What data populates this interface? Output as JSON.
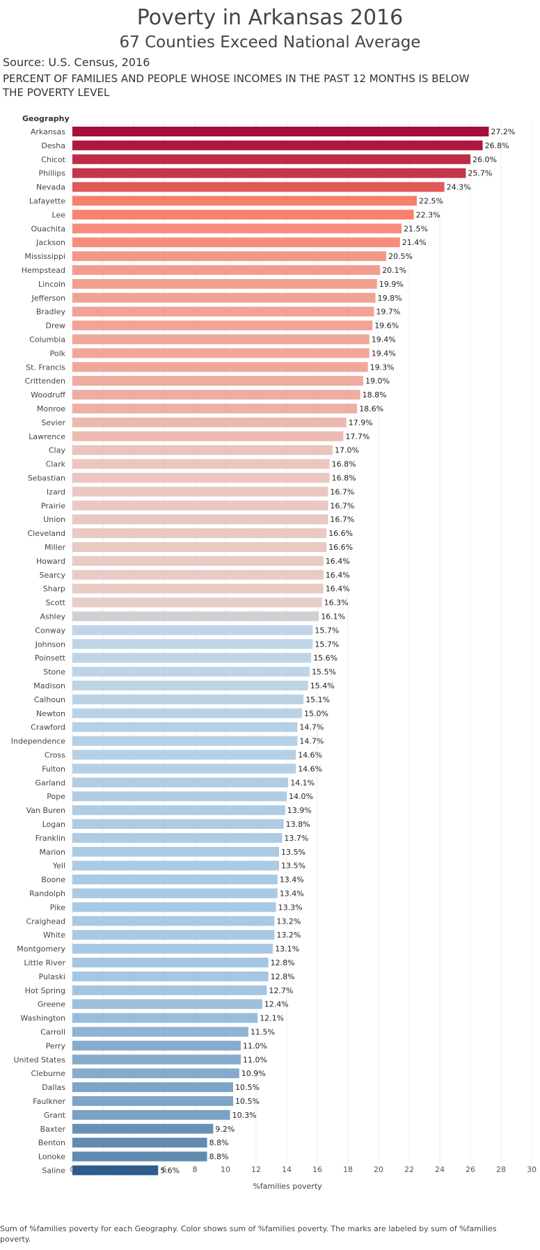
{
  "header": {
    "title": "Poverty in Arkansas 2016",
    "subtitle": "67 Counties Exceed National Average",
    "source": "Source: U.S. Census, 2016",
    "description": "PERCENT OF FAMILIES AND PEOPLE WHOSE INCOMES IN THE PAST 12 MONTHS IS BELOW THE POVERTY LEVEL"
  },
  "footnote": "Sum of %families poverty for each Geography.  Color shows sum of %families poverty.  The marks are labeled by sum of %families poverty.",
  "chart_data": {
    "type": "bar",
    "orientation": "horizontal",
    "row_header": "Geography",
    "xlabel": "%families poverty",
    "xlim": [
      0,
      30
    ],
    "xticks": [
      0,
      2,
      4,
      6,
      8,
      10,
      12,
      14,
      16,
      18,
      20,
      22,
      24,
      26,
      28,
      30
    ],
    "grid": true,
    "color_scale": {
      "low": "#2c5b8c",
      "mid": "#d4d4d4",
      "high": "#a50f3a"
    },
    "categories": [
      "Arkansas",
      "Desha",
      "Chicot",
      "Phillips",
      "Nevada",
      "Lafayette",
      "Lee",
      "Ouachita",
      "Jackson",
      "Mississippi",
      "Hempstead",
      "Lincoln",
      "Jefferson",
      "Bradley",
      "Drew",
      "Columbia",
      "Polk",
      "St. Francis",
      "Crittenden",
      "Woodruff",
      "Monroe",
      "Sevier",
      "Lawrence",
      "Clay",
      "Clark",
      "Sebastian",
      "Izard",
      "Prairie",
      "Union",
      "Cleveland",
      "Miller",
      "Howard",
      "Searcy",
      "Sharp",
      "Scott",
      "Ashley",
      "Conway",
      "Johnson",
      "Poinsett",
      "Stone",
      "Madison",
      "Calhoun",
      "Newton",
      "Crawford",
      "Independence",
      "Cross",
      "Fulton",
      "Garland",
      "Pope",
      "Van Buren",
      "Logan",
      "Franklin",
      "Marion",
      "Yell",
      "Boone",
      "Randolph",
      "Pike",
      "Craighead",
      "White",
      "Montgomery",
      "Little River",
      "Pulaski",
      "Hot Spring",
      "Greene",
      "Washington",
      "Carroll",
      "Perry",
      "United States",
      "Cleburne",
      "Dallas",
      "Faulkner",
      "Grant",
      "Baxter",
      "Benton",
      "Lonoke",
      "Saline"
    ],
    "values": [
      27.2,
      26.8,
      26.0,
      25.7,
      24.3,
      22.5,
      22.3,
      21.5,
      21.4,
      20.5,
      20.1,
      19.9,
      19.8,
      19.7,
      19.6,
      19.4,
      19.4,
      19.3,
      19.0,
      18.8,
      18.6,
      17.9,
      17.7,
      17.0,
      16.8,
      16.8,
      16.7,
      16.7,
      16.7,
      16.6,
      16.6,
      16.4,
      16.4,
      16.4,
      16.3,
      16.1,
      15.7,
      15.7,
      15.6,
      15.5,
      15.4,
      15.1,
      15.0,
      14.7,
      14.7,
      14.6,
      14.6,
      14.1,
      14.0,
      13.9,
      13.8,
      13.7,
      13.5,
      13.5,
      13.4,
      13.4,
      13.3,
      13.2,
      13.2,
      13.1,
      12.8,
      12.8,
      12.7,
      12.4,
      12.1,
      11.5,
      11.0,
      11.0,
      10.9,
      10.5,
      10.5,
      10.3,
      9.2,
      8.8,
      8.8,
      5.6
    ],
    "labels": [
      "27.2%",
      "26.8%",
      "26.0%",
      "25.7%",
      "24.3%",
      "22.5%",
      "22.3%",
      "21.5%",
      "21.4%",
      "20.5%",
      "20.1%",
      "19.9%",
      "19.8%",
      "19.7%",
      "19.6%",
      "19.4%",
      "19.4%",
      "19.3%",
      "19.0%",
      "18.8%",
      "18.6%",
      "17.9%",
      "17.7%",
      "17.0%",
      "16.8%",
      "16.8%",
      "16.7%",
      "16.7%",
      "16.7%",
      "16.6%",
      "16.6%",
      "16.4%",
      "16.4%",
      "16.4%",
      "16.3%",
      "16.1%",
      "15.7%",
      "15.7%",
      "15.6%",
      "15.5%",
      "15.4%",
      "15.1%",
      "15.0%",
      "14.7%",
      "14.7%",
      "14.6%",
      "14.6%",
      "14.1%",
      "14.0%",
      "13.9%",
      "13.8%",
      "13.7%",
      "13.5%",
      "13.5%",
      "13.4%",
      "13.4%",
      "13.3%",
      "13.2%",
      "13.2%",
      "13.1%",
      "12.8%",
      "12.8%",
      "12.7%",
      "12.4%",
      "12.1%",
      "11.5%",
      "11.0%",
      "11.0%",
      "10.9%",
      "10.5%",
      "10.5%",
      "10.3%",
      "9.2%",
      "8.8%",
      "8.8%",
      "5.6%"
    ]
  }
}
